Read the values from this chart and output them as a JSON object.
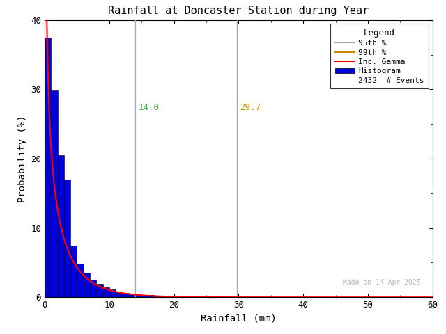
{
  "title": "Rainfall at Doncaster Station during Year",
  "xlabel": "Rainfall (mm)",
  "ylabel": "Probability (%)",
  "xlim": [
    0,
    60
  ],
  "ylim": [
    0,
    40
  ],
  "xticks": [
    0,
    10,
    20,
    30,
    40,
    50,
    60
  ],
  "yticks": [
    0,
    10,
    20,
    30,
    40
  ],
  "percentile_95": 14.0,
  "percentile_99": 29.7,
  "percentile_95_color": "#aaaaaa",
  "percentile_99_color": "#aaaaaa",
  "percentile_95_label_color": "#44bb44",
  "percentile_99_label_color": "#cc8800",
  "legend_95_color": "#aaaaaa",
  "legend_99_color": "#cc8800",
  "gamma_color": "#ff0000",
  "hist_color": "#0000dd",
  "hist_edge_color": "#000000",
  "n_events": 2432,
  "legend_title": "Legend",
  "watermark": "Made on 14 Apr 2025",
  "watermark_color": "#bbbbbb",
  "bg_color": "#ffffff",
  "gamma_shape": 0.55,
  "gamma_scale": 4.5,
  "bin_width": 1.0,
  "hist_bars": [
    37.5,
    29.8,
    20.5,
    17.0,
    7.5,
    4.8,
    3.5,
    2.5,
    1.9,
    1.4,
    1.1,
    0.85,
    0.65,
    0.5,
    0.45,
    0.35,
    0.3,
    0.26,
    0.22,
    0.19,
    0.17,
    0.14,
    0.12,
    0.11,
    0.1,
    0.09,
    0.08,
    0.07,
    0.06,
    0.05,
    0.05,
    0.04,
    0.035,
    0.03,
    0.025,
    0.02,
    0.018,
    0.015,
    0.012,
    0.01,
    0.008,
    0.006,
    0.005,
    0.004,
    0.003,
    0.002,
    0.0,
    0.0,
    0.0,
    0.0,
    0.0,
    0.0,
    0.0,
    0.002,
    0.0,
    0.0,
    0.0,
    0.0,
    0.0,
    0.002
  ]
}
